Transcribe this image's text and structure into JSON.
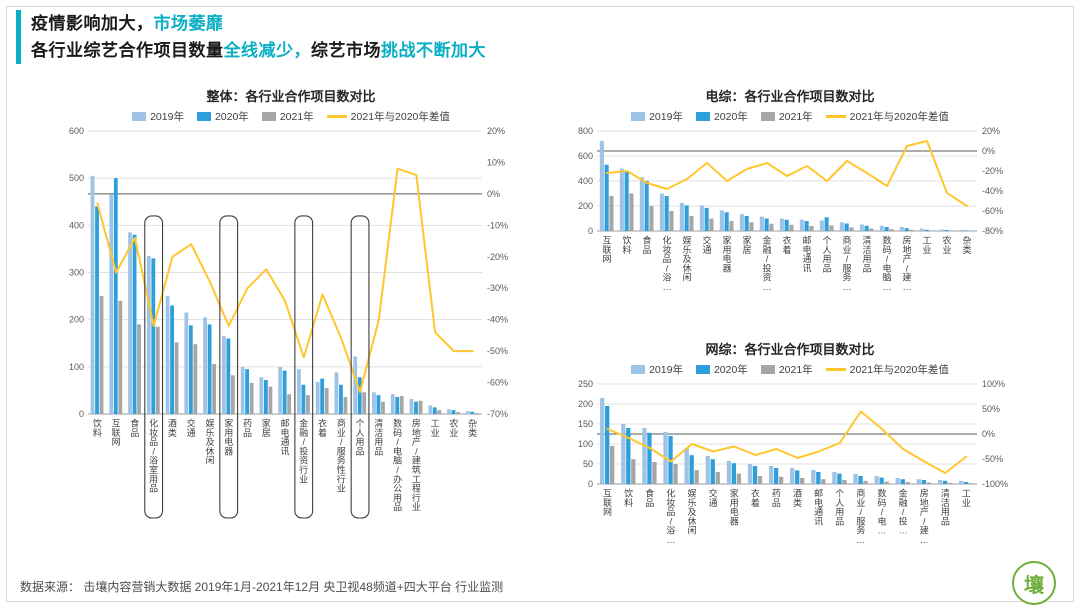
{
  "colors": {
    "accent": "#0BAFC4",
    "text_dark": "#1a1a1a",
    "grid": "#e0e0e0",
    "axis": "#9e9e9e",
    "zero_line": "#595959",
    "highlight_box": "#3f3f3f"
  },
  "header": {
    "line1": [
      {
        "text": "疫情影响加大，",
        "accent": false
      },
      {
        "text": "市场萎靡",
        "accent": true
      }
    ],
    "line2": [
      {
        "text": "各行业综艺合作项目数量",
        "accent": false
      },
      {
        "text": "全线减少，",
        "accent": true
      },
      {
        "text": "综艺市场",
        "accent": false
      },
      {
        "text": "挑战不断加大",
        "accent": true
      }
    ]
  },
  "footer": {
    "source": "数据来源： 击壤内容营销大数据 2019年1月-2021年12月  央卫视48频道+四大平台 行业监测"
  },
  "brand": {
    "logo_text": "壤",
    "color": "#6fae3a"
  },
  "chart_data": [
    {
      "type": "bar+line",
      "title": "整体：各行业合作项目数对比",
      "categories": [
        "饮料",
        "互联网",
        "食品",
        "化妆品/浴室用品",
        "酒类",
        "交通",
        "娱乐及休闲",
        "家用电器",
        "药品",
        "家居",
        "邮电通讯",
        "金融/投资行业",
        "衣着",
        "商业/服务性行业",
        "个人用品",
        "清洁用品",
        "数码/电脑/办公用品",
        "房地产/建筑工程行业",
        "工业",
        "农业",
        "杂类"
      ],
      "series": [
        {
          "name": "2019年",
          "color": "#9DC3E6",
          "values": [
            505,
            465,
            385,
            335,
            250,
            215,
            205,
            165,
            100,
            78,
            100,
            95,
            68,
            88,
            122,
            46,
            42,
            32,
            18,
            10,
            6
          ]
        },
        {
          "name": "2020年",
          "color": "#2E9FDA",
          "values": [
            440,
            500,
            380,
            330,
            230,
            188,
            190,
            160,
            95,
            72,
            92,
            62,
            75,
            62,
            78,
            40,
            36,
            26,
            14,
            8,
            5
          ]
        },
        {
          "name": "2021年",
          "color": "#A6A6A6",
          "values": [
            250,
            240,
            190,
            185,
            152,
            148,
            106,
            82,
            66,
            58,
            42,
            40,
            55,
            36,
            46,
            26,
            38,
            28,
            8,
            4,
            2
          ]
        }
      ],
      "line_series": {
        "name": "2021年与2020年差值",
        "color": "#FFC62E",
        "values": [
          -3,
          -25,
          -14,
          -42,
          -20,
          -16,
          -28,
          -42,
          -30,
          -24,
          -34,
          -52,
          -32,
          -46,
          -63,
          -40,
          8,
          6,
          -44,
          -50,
          -50
        ]
      },
      "left_axis": {
        "min": 0,
        "max": 600,
        "step": 100
      },
      "right_axis": {
        "min": -70,
        "max": 20,
        "step": 10,
        "format": "percent"
      },
      "highlighted_categories": [
        "化妆品/浴室用品",
        "家用电器",
        "金融/投资行业",
        "个人用品"
      ],
      "legend_position": "top",
      "grid": true
    },
    {
      "type": "bar+line",
      "title": "电综：各行业合作项目数对比",
      "categories": [
        "互联网",
        "饮料",
        "食品",
        "化妆品/浴…",
        "娱乐及休闲",
        "交通",
        "家用电器",
        "家居",
        "金融/投资…",
        "衣着",
        "邮电通讯",
        "个人用品",
        "商业/服务…",
        "清洁用品",
        "数码/电脑…",
        "房地产/建…",
        "工业",
        "农业",
        "杂类"
      ],
      "series": [
        {
          "name": "2019年",
          "color": "#9DC3E6",
          "values": [
            720,
            500,
            430,
            300,
            225,
            205,
            165,
            135,
            115,
            100,
            92,
            85,
            70,
            52,
            42,
            32,
            20,
            12,
            8
          ]
        },
        {
          "name": "2020年",
          "color": "#2E9FDA",
          "values": [
            530,
            480,
            400,
            280,
            205,
            185,
            150,
            120,
            100,
            90,
            80,
            110,
            60,
            42,
            32,
            22,
            10,
            8,
            5
          ]
        },
        {
          "name": "2021年",
          "color": "#A6A6A6",
          "values": [
            280,
            300,
            200,
            160,
            120,
            100,
            80,
            70,
            58,
            50,
            40,
            45,
            30,
            20,
            15,
            10,
            5,
            4,
            2
          ]
        }
      ],
      "line_series": {
        "name": "2021年与2020年差值",
        "color": "#FFC62E",
        "values": [
          -22,
          -20,
          -32,
          -38,
          -28,
          -12,
          -30,
          -18,
          -12,
          -25,
          -15,
          -30,
          -10,
          -22,
          -35,
          5,
          10,
          -42,
          -55
        ]
      },
      "left_axis": {
        "min": 0,
        "max": 800,
        "step": 200
      },
      "right_axis": {
        "min": -80,
        "max": 20,
        "step": 20,
        "format": "percent"
      },
      "legend_position": "top",
      "grid": true
    },
    {
      "type": "bar+line",
      "title": "网综：各行业合作项目数对比",
      "categories": [
        "互联网",
        "饮料",
        "食品",
        "化妆品/浴…",
        "娱乐及休闲",
        "交通",
        "家用电器",
        "衣着",
        "药品",
        "酒类",
        "邮电通讯",
        "个人用品",
        "商业/服务…",
        "数码/电…",
        "金融/投…",
        "房地产/建…",
        "清洁用品",
        "工业"
      ],
      "series": [
        {
          "name": "2019年",
          "color": "#9DC3E6",
          "values": [
            215,
            150,
            140,
            130,
            90,
            70,
            58,
            50,
            45,
            40,
            35,
            30,
            25,
            20,
            15,
            12,
            10,
            8
          ]
        },
        {
          "name": "2020年",
          "color": "#2E9FDA",
          "values": [
            195,
            140,
            128,
            120,
            72,
            62,
            52,
            45,
            40,
            34,
            30,
            26,
            20,
            16,
            12,
            10,
            8,
            5
          ]
        },
        {
          "name": "2021年",
          "color": "#A6A6A6",
          "values": [
            95,
            62,
            55,
            50,
            35,
            30,
            26,
            20,
            18,
            15,
            12,
            10,
            8,
            6,
            5,
            4,
            3,
            2
          ]
        }
      ],
      "line_series": {
        "name": "2021年与2020年差值",
        "color": "#FFC62E",
        "values": [
          10,
          -8,
          -28,
          -55,
          -20,
          -35,
          -25,
          -42,
          -30,
          -48,
          -35,
          -18,
          45,
          10,
          -30,
          -55,
          -78,
          -45
        ]
      },
      "left_axis": {
        "min": 0,
        "max": 250,
        "step": 50
      },
      "right_axis": {
        "min": -100,
        "max": 100,
        "step": 50,
        "format": "percent"
      },
      "legend_position": "top",
      "grid": true
    }
  ]
}
